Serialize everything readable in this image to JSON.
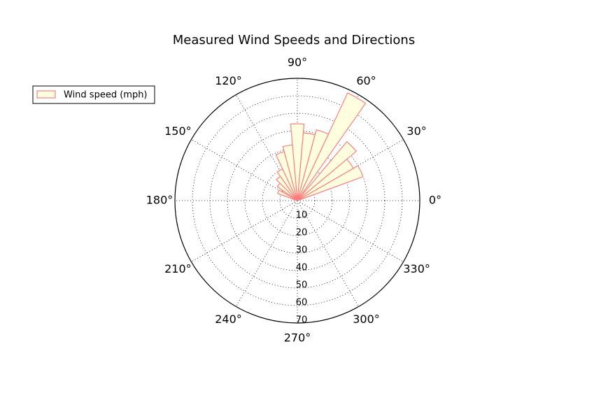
{
  "chart_data": {
    "type": "polar-bar",
    "title": "Measured Wind Speeds and Directions",
    "x": [
      25,
      35,
      45,
      60,
      70,
      80,
      90,
      100,
      110,
      120,
      130,
      140,
      155
    ],
    "series": [
      {
        "name": "Wind speed (mph)",
        "color": "#ff7f7f",
        "fill": "#ffffe0",
        "values": [
          40,
          37,
          44,
          68,
          42,
          39,
          44,
          32,
          29,
          20,
          17,
          14,
          12
        ]
      }
    ],
    "rlim": [
      0,
      70
    ],
    "rticks": [
      10,
      20,
      30,
      40,
      50,
      60,
      70
    ],
    "xticks": [
      {
        "value": 0,
        "label": "0°"
      },
      {
        "value": 30,
        "label": "30°"
      },
      {
        "value": 60,
        "label": "60°"
      },
      {
        "value": 90,
        "label": "90°"
      },
      {
        "value": 120,
        "label": "120°"
      },
      {
        "value": 150,
        "label": "150°"
      },
      {
        "value": 180,
        "label": "180°"
      },
      {
        "value": 210,
        "label": "210°"
      },
      {
        "value": 240,
        "label": "240°"
      },
      {
        "value": 270,
        "label": "270°"
      },
      {
        "value": 300,
        "label": "300°"
      },
      {
        "value": 330,
        "label": "330°"
      }
    ],
    "grid": true,
    "legend": "upper left"
  }
}
